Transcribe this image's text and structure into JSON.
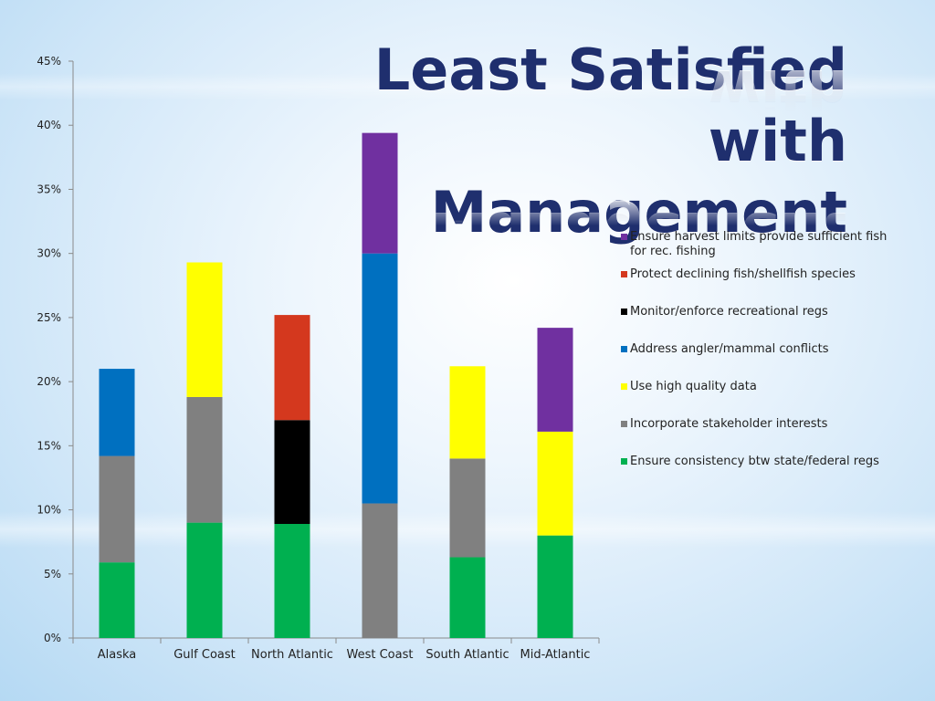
{
  "title_lines": [
    "Least Satisfied with",
    "Management"
  ],
  "chart_data": {
    "type": "bar",
    "stacked": true,
    "categories": [
      "Alaska",
      "Gulf Coast",
      "North Atlantic",
      "West Coast",
      "South Atlantic",
      "Mid-Atlantic"
    ],
    "ylim": [
      0,
      45
    ],
    "yticks": [
      "0%",
      "5%",
      "10%",
      "15%",
      "20%",
      "25%",
      "30%",
      "35%",
      "40%",
      "45%"
    ],
    "ytick_values": [
      0,
      5,
      10,
      15,
      20,
      25,
      30,
      35,
      40,
      45
    ],
    "grid": false,
    "legend_position": "right",
    "series": [
      {
        "name": "Ensure consistency btw state/federal regs",
        "color": "#00b050",
        "values": [
          5.9,
          9.0,
          8.9,
          0,
          6.3,
          8.0
        ]
      },
      {
        "name": "Incorporate stakeholder interests",
        "color": "#808080",
        "values": [
          8.3,
          9.8,
          0,
          10.5,
          7.7,
          0
        ]
      },
      {
        "name": "Use high quality data",
        "color": "#ffff00",
        "values": [
          0,
          10.5,
          0,
          0,
          7.2,
          8.1
        ]
      },
      {
        "name": "Address angler/mammal conflicts",
        "color": "#0070c0",
        "values": [
          6.8,
          0,
          0,
          19.5,
          0,
          0
        ]
      },
      {
        "name": "Monitor/enforce recreational regs",
        "color": "#000000",
        "values": [
          0,
          0,
          8.1,
          0,
          0,
          0
        ]
      },
      {
        "name": "Protect declining fish/shellfish species",
        "color": "#d4381e",
        "values": [
          0,
          0,
          8.2,
          0,
          0,
          0
        ]
      },
      {
        "name": "Ensure harvest limits provide sufficient fish for rec. fishing",
        "color": "#7030a0",
        "values": [
          0,
          0,
          0,
          9.4,
          0,
          8.1
        ]
      }
    ]
  },
  "legend_lines": [
    {
      "series": 6,
      "lines": [
        "Ensure harvest limits provide sufficient fish",
        "for rec. fishing"
      ]
    },
    {
      "series": 5,
      "lines": [
        "Protect declining fish/shellfish species"
      ]
    },
    {
      "series": 4,
      "lines": [
        "Monitor/enforce recreational regs"
      ]
    },
    {
      "series": 3,
      "lines": [
        "Address angler/mammal conflicts"
      ]
    },
    {
      "series": 2,
      "lines": [
        "Use high quality data"
      ]
    },
    {
      "series": 1,
      "lines": [
        "Incorporate stakeholder interests"
      ]
    },
    {
      "series": 0,
      "lines": [
        "Ensure consistency btw state/federal regs"
      ]
    }
  ]
}
